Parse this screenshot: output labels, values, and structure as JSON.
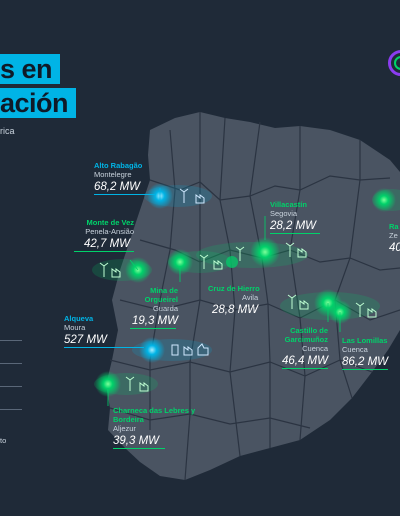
{
  "title": {
    "line1": "s en",
    "line2": "ación",
    "subtitle": "rica"
  },
  "legend": {
    "fragment": "to"
  },
  "colors": {
    "background": "#1f2a38",
    "land": "#4a5462",
    "borders": "#2b3442",
    "hydro": "#00b4e6",
    "renewable": "#00d26a"
  },
  "sites": [
    {
      "id": "alto-rabagao",
      "name": "Alto Rabagão",
      "location": "Montelegre",
      "mw": "68,2 MW",
      "kind": "hydro",
      "icons": [
        "wind-turbine-icon",
        "factory-icon"
      ]
    },
    {
      "id": "monte-de-vez",
      "name": "Monte de Vez",
      "location": "Penela-Ansião",
      "mw": "42,7 MW",
      "kind": "renewable",
      "icons": [
        "wind-turbine-icon",
        "factory-icon"
      ]
    },
    {
      "id": "mina-de-orgueirel",
      "name": "Mina de Orgueirel",
      "location": "Guarda",
      "mw": "19,3 MW",
      "kind": "renewable",
      "icons": [
        "wind-turbine-icon",
        "factory-icon"
      ]
    },
    {
      "id": "cruz-de-hierro",
      "name": "Cruz de Hierro",
      "location": "Avila",
      "mw": "28,8 MW",
      "kind": "renewable",
      "icons": [
        "wind-turbine-icon",
        "factory-icon"
      ]
    },
    {
      "id": "villacastin",
      "name": "Villacastín",
      "location": "Segovia",
      "mw": "28,2 MW",
      "kind": "renewable",
      "icons": [
        "wind-turbine-icon",
        "factory-icon"
      ]
    },
    {
      "id": "alqueva",
      "name": "Alqueva",
      "location": "Moura",
      "mw": "527 MW",
      "kind": "hydro",
      "icons": [
        "hydro-dam-icon",
        "factory-icon",
        "thumbs-icon"
      ]
    },
    {
      "id": "castillo-garcimunoz",
      "name": "Castillo de Garcimuñoz",
      "location": "Cuenca",
      "mw": "46,4 MW",
      "kind": "renewable",
      "icons": [
        "wind-turbine-icon",
        "factory-icon"
      ]
    },
    {
      "id": "las-lomillas",
      "name": "Las Lomillas",
      "location": "Cuenca",
      "mw": "86,2 MW",
      "kind": "renewable",
      "icons": [
        "wind-turbine-icon",
        "factory-icon"
      ]
    },
    {
      "id": "charneca",
      "name": "Charneca das Lebres y Bordeira",
      "location": "Aljezur",
      "mw": "39,3 MW",
      "kind": "renewable",
      "icons": [
        "wind-turbine-icon",
        "factory-icon"
      ]
    },
    {
      "id": "ra-partial",
      "name": "Ra",
      "location": "Ze",
      "mw": "40",
      "kind": "renewable",
      "icons": [
        "wind-turbine-icon"
      ]
    }
  ]
}
